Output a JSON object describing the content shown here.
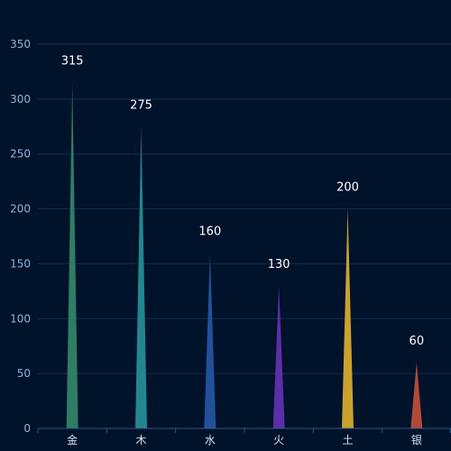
{
  "chart_data": {
    "type": "bar",
    "categories": [
      "金",
      "木",
      "水",
      "火",
      "土",
      "银"
    ],
    "values": [
      315,
      275,
      160,
      130,
      200,
      60
    ],
    "ylim": [
      0,
      350
    ],
    "yticks": [
      0,
      50,
      100,
      150,
      200,
      250,
      300,
      350
    ],
    "grid": true,
    "bar_shape": "triangle",
    "colors": [
      "#2e7d64",
      "#23868f",
      "#22519a",
      "#5a2fa8",
      "#c9a22e",
      "#b24a3a"
    ],
    "background": "#01122b"
  }
}
